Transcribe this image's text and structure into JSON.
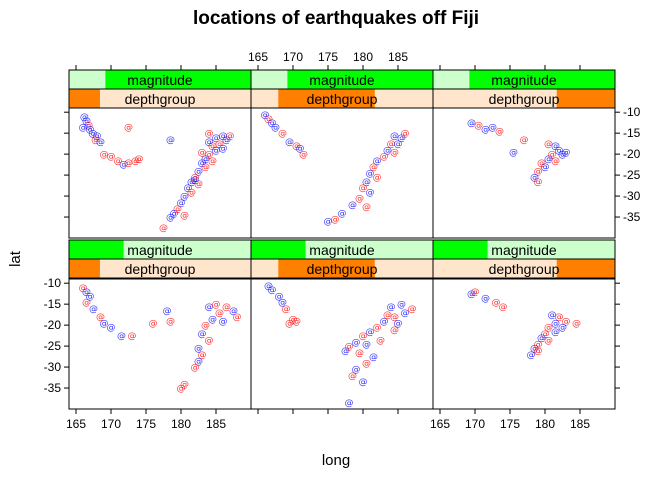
{
  "chart_data": {
    "type": "scatter",
    "title": "locations of earthquakes off Fiji",
    "xlabel": "long",
    "ylabel": "lat",
    "xlim": [
      164,
      190
    ],
    "ylim": [
      -40,
      -9
    ],
    "x_ticks": [
      165,
      170,
      175,
      180,
      185
    ],
    "y_ticks": [
      -10,
      -15,
      -20,
      -25,
      -30,
      -35
    ],
    "x_tick_labels": [
      "165",
      "170",
      "175",
      "180",
      "185"
    ],
    "y_tick_labels": [
      "-10",
      "-15",
      "-20",
      "-25",
      "-30",
      "-35"
    ],
    "marker": "@",
    "colors": {
      "red_points": "#ff0000",
      "blue_points": "#0000ff",
      "strip_mag_bg": "#ccffcc",
      "strip_mag_fill": "#00ff00",
      "strip_depth_bg": "#ffe5cc",
      "strip_depth_fill": "#ff7f00"
    },
    "strips": {
      "magnitude_label": "magnitude",
      "depthgroup_label": "depthgroup"
    },
    "panels": [
      {
        "row": "top",
        "col": 1,
        "magnitude_range": [
          0.2,
          1.0
        ],
        "depth_range": [
          0.0,
          0.17
        ],
        "points": [
          {
            "x": 166.2,
            "y": -11.0,
            "c": "blue"
          },
          {
            "x": 166.5,
            "y": -12.0,
            "c": "blue"
          },
          {
            "x": 166.8,
            "y": -13.0,
            "c": "red"
          },
          {
            "x": 166.0,
            "y": -13.5,
            "c": "blue"
          },
          {
            "x": 167.0,
            "y": -14.0,
            "c": "blue"
          },
          {
            "x": 167.4,
            "y": -15.0,
            "c": "blue"
          },
          {
            "x": 168.0,
            "y": -15.5,
            "c": "blue"
          },
          {
            "x": 167.8,
            "y": -16.5,
            "c": "red"
          },
          {
            "x": 168.5,
            "y": -17.0,
            "c": "blue"
          },
          {
            "x": 169.0,
            "y": -20.0,
            "c": "red"
          },
          {
            "x": 170.0,
            "y": -20.5,
            "c": "red"
          },
          {
            "x": 171.0,
            "y": -21.5,
            "c": "red"
          },
          {
            "x": 171.8,
            "y": -22.3,
            "c": "blue"
          },
          {
            "x": 172.5,
            "y": -22.0,
            "c": "red"
          },
          {
            "x": 173.5,
            "y": -21.5,
            "c": "red"
          },
          {
            "x": 174.0,
            "y": -21.0,
            "c": "red"
          },
          {
            "x": 172.5,
            "y": -13.5,
            "c": "red"
          },
          {
            "x": 178.5,
            "y": -16.5,
            "c": "blue"
          },
          {
            "x": 184.0,
            "y": -15.0,
            "c": "red"
          },
          {
            "x": 185.0,
            "y": -16.0,
            "c": "blue"
          },
          {
            "x": 186.0,
            "y": -15.5,
            "c": "blue"
          },
          {
            "x": 187.0,
            "y": -15.5,
            "c": "red"
          },
          {
            "x": 186.5,
            "y": -16.5,
            "c": "blue"
          },
          {
            "x": 185.5,
            "y": -17.5,
            "c": "red"
          },
          {
            "x": 184.5,
            "y": -18.0,
            "c": "red"
          },
          {
            "x": 185.0,
            "y": -19.0,
            "c": "blue"
          },
          {
            "x": 184.0,
            "y": -20.0,
            "c": "red"
          },
          {
            "x": 183.5,
            "y": -21.0,
            "c": "blue"
          },
          {
            "x": 184.5,
            "y": -21.5,
            "c": "red"
          },
          {
            "x": 183.0,
            "y": -22.0,
            "c": "blue"
          },
          {
            "x": 183.5,
            "y": -23.0,
            "c": "red"
          },
          {
            "x": 182.5,
            "y": -24.0,
            "c": "blue"
          },
          {
            "x": 182.0,
            "y": -25.5,
            "c": "red"
          },
          {
            "x": 181.5,
            "y": -26.5,
            "c": "blue"
          },
          {
            "x": 182.5,
            "y": -27.0,
            "c": "red"
          },
          {
            "x": 181.0,
            "y": -28.0,
            "c": "blue"
          },
          {
            "x": 181.5,
            "y": -29.0,
            "c": "red"
          },
          {
            "x": 180.5,
            "y": -30.0,
            "c": "blue"
          },
          {
            "x": 180.0,
            "y": -31.5,
            "c": "blue"
          },
          {
            "x": 179.5,
            "y": -33.0,
            "c": "red"
          },
          {
            "x": 179.0,
            "y": -34.0,
            "c": "blue"
          },
          {
            "x": 180.5,
            "y": -34.5,
            "c": "red"
          },
          {
            "x": 178.5,
            "y": -35.0,
            "c": "blue"
          },
          {
            "x": 177.5,
            "y": -37.5,
            "c": "red"
          },
          {
            "x": 186.0,
            "y": -18.5,
            "c": "blue"
          },
          {
            "x": 184.0,
            "y": -17.0,
            "c": "blue"
          },
          {
            "x": 183.0,
            "y": -19.5,
            "c": "red"
          },
          {
            "x": 182.0,
            "y": -26.0,
            "c": "blue"
          }
        ]
      },
      {
        "row": "top",
        "col": 2,
        "magnitude_range": [
          0.2,
          1.0
        ],
        "depth_range": [
          0.15,
          0.68
        ],
        "points": [
          {
            "x": 166.0,
            "y": -10.5,
            "c": "blue"
          },
          {
            "x": 166.5,
            "y": -11.5,
            "c": "red"
          },
          {
            "x": 167.0,
            "y": -12.5,
            "c": "blue"
          },
          {
            "x": 167.5,
            "y": -13.5,
            "c": "blue"
          },
          {
            "x": 168.5,
            "y": -15.0,
            "c": "red"
          },
          {
            "x": 169.5,
            "y": -17.0,
            "c": "blue"
          },
          {
            "x": 170.5,
            "y": -18.0,
            "c": "red"
          },
          {
            "x": 171.0,
            "y": -18.5,
            "c": "blue"
          },
          {
            "x": 171.5,
            "y": -20.0,
            "c": "red"
          },
          {
            "x": 184.5,
            "y": -15.5,
            "c": "blue"
          },
          {
            "x": 185.5,
            "y": -16.0,
            "c": "blue"
          },
          {
            "x": 186.0,
            "y": -15.0,
            "c": "red"
          },
          {
            "x": 184.0,
            "y": -17.5,
            "c": "red"
          },
          {
            "x": 183.5,
            "y": -19.0,
            "c": "blue"
          },
          {
            "x": 183.0,
            "y": -20.5,
            "c": "red"
          },
          {
            "x": 182.0,
            "y": -21.5,
            "c": "blue"
          },
          {
            "x": 181.5,
            "y": -23.0,
            "c": "red"
          },
          {
            "x": 181.0,
            "y": -24.5,
            "c": "blue"
          },
          {
            "x": 182.0,
            "y": -25.5,
            "c": "red"
          },
          {
            "x": 180.5,
            "y": -26.5,
            "c": "blue"
          },
          {
            "x": 180.0,
            "y": -28.0,
            "c": "red"
          },
          {
            "x": 181.0,
            "y": -29.0,
            "c": "blue"
          },
          {
            "x": 179.5,
            "y": -30.5,
            "c": "red"
          },
          {
            "x": 178.5,
            "y": -32.0,
            "c": "blue"
          },
          {
            "x": 180.5,
            "y": -32.5,
            "c": "red"
          },
          {
            "x": 177.0,
            "y": -34.0,
            "c": "blue"
          },
          {
            "x": 176.0,
            "y": -35.5,
            "c": "red"
          },
          {
            "x": 175.0,
            "y": -36.0,
            "c": "blue"
          },
          {
            "x": 184.5,
            "y": -19.5,
            "c": "red"
          },
          {
            "x": 185.0,
            "y": -17.5,
            "c": "blue"
          }
        ]
      },
      {
        "row": "top",
        "col": 3,
        "magnitude_range": [
          0.2,
          1.0
        ],
        "depth_range": [
          0.68,
          1.0
        ],
        "points": [
          {
            "x": 169.5,
            "y": -12.5,
            "c": "blue"
          },
          {
            "x": 170.5,
            "y": -13.0,
            "c": "red"
          },
          {
            "x": 171.5,
            "y": -14.0,
            "c": "blue"
          },
          {
            "x": 172.5,
            "y": -13.5,
            "c": "blue"
          },
          {
            "x": 173.5,
            "y": -14.5,
            "c": "red"
          },
          {
            "x": 175.5,
            "y": -19.5,
            "c": "blue"
          },
          {
            "x": 177.0,
            "y": -16.5,
            "c": "red"
          },
          {
            "x": 180.5,
            "y": -17.5,
            "c": "red"
          },
          {
            "x": 181.5,
            "y": -18.0,
            "c": "blue"
          },
          {
            "x": 182.0,
            "y": -19.0,
            "c": "blue"
          },
          {
            "x": 181.0,
            "y": -20.0,
            "c": "red"
          },
          {
            "x": 180.5,
            "y": -21.0,
            "c": "blue"
          },
          {
            "x": 179.5,
            "y": -22.0,
            "c": "red"
          },
          {
            "x": 180.0,
            "y": -23.0,
            "c": "blue"
          },
          {
            "x": 179.0,
            "y": -24.0,
            "c": "red"
          },
          {
            "x": 178.5,
            "y": -25.5,
            "c": "blue"
          },
          {
            "x": 179.0,
            "y": -26.5,
            "c": "red"
          },
          {
            "x": 182.5,
            "y": -20.0,
            "c": "blue"
          },
          {
            "x": 181.5,
            "y": -21.5,
            "c": "red"
          },
          {
            "x": 183.0,
            "y": -19.5,
            "c": "blue"
          }
        ]
      },
      {
        "row": "bottom",
        "col": 1,
        "magnitude_range": [
          0.0,
          0.3
        ],
        "depth_range": [
          0.0,
          0.17
        ],
        "points": [
          {
            "x": 166.0,
            "y": -11.0,
            "c": "red"
          },
          {
            "x": 166.5,
            "y": -12.0,
            "c": "blue"
          },
          {
            "x": 167.0,
            "y": -13.0,
            "c": "blue"
          },
          {
            "x": 166.5,
            "y": -14.5,
            "c": "red"
          },
          {
            "x": 167.5,
            "y": -16.0,
            "c": "blue"
          },
          {
            "x": 168.5,
            "y": -18.0,
            "c": "red"
          },
          {
            "x": 169.0,
            "y": -19.5,
            "c": "blue"
          },
          {
            "x": 170.0,
            "y": -20.5,
            "c": "blue"
          },
          {
            "x": 171.5,
            "y": -22.5,
            "c": "blue"
          },
          {
            "x": 173.0,
            "y": -22.5,
            "c": "red"
          },
          {
            "x": 178.0,
            "y": -16.5,
            "c": "blue"
          },
          {
            "x": 176.0,
            "y": -19.5,
            "c": "red"
          },
          {
            "x": 178.5,
            "y": -19.0,
            "c": "red"
          },
          {
            "x": 184.0,
            "y": -15.5,
            "c": "blue"
          },
          {
            "x": 185.0,
            "y": -15.0,
            "c": "red"
          },
          {
            "x": 186.5,
            "y": -15.5,
            "c": "red"
          },
          {
            "x": 187.5,
            "y": -16.5,
            "c": "blue"
          },
          {
            "x": 185.5,
            "y": -17.0,
            "c": "red"
          },
          {
            "x": 184.5,
            "y": -18.5,
            "c": "blue"
          },
          {
            "x": 183.5,
            "y": -20.0,
            "c": "red"
          },
          {
            "x": 183.0,
            "y": -22.0,
            "c": "blue"
          },
          {
            "x": 184.0,
            "y": -23.5,
            "c": "red"
          },
          {
            "x": 182.5,
            "y": -25.5,
            "c": "blue"
          },
          {
            "x": 183.0,
            "y": -27.0,
            "c": "red"
          },
          {
            "x": 182.5,
            "y": -28.5,
            "c": "blue"
          },
          {
            "x": 182.0,
            "y": -30.0,
            "c": "red"
          },
          {
            "x": 180.5,
            "y": -34.0,
            "c": "red"
          },
          {
            "x": 180.0,
            "y": -35.0,
            "c": "red"
          },
          {
            "x": 188.0,
            "y": -18.0,
            "c": "red"
          },
          {
            "x": 186.0,
            "y": -19.0,
            "c": "blue"
          }
        ]
      },
      {
        "row": "bottom",
        "col": 2,
        "magnitude_range": [
          0.0,
          0.3
        ],
        "depth_range": [
          0.15,
          0.68
        ],
        "points": [
          {
            "x": 166.5,
            "y": -10.5,
            "c": "blue"
          },
          {
            "x": 167.0,
            "y": -11.5,
            "c": "blue"
          },
          {
            "x": 168.0,
            "y": -13.0,
            "c": "blue"
          },
          {
            "x": 168.5,
            "y": -14.5,
            "c": "blue"
          },
          {
            "x": 169.0,
            "y": -16.0,
            "c": "red"
          },
          {
            "x": 170.0,
            "y": -18.5,
            "c": "red"
          },
          {
            "x": 170.5,
            "y": -19.0,
            "c": "red"
          },
          {
            "x": 169.5,
            "y": -19.5,
            "c": "red"
          },
          {
            "x": 184.0,
            "y": -15.5,
            "c": "blue"
          },
          {
            "x": 185.5,
            "y": -15.0,
            "c": "blue"
          },
          {
            "x": 187.0,
            "y": -16.0,
            "c": "red"
          },
          {
            "x": 186.0,
            "y": -17.0,
            "c": "blue"
          },
          {
            "x": 184.5,
            "y": -18.0,
            "c": "red"
          },
          {
            "x": 183.0,
            "y": -19.0,
            "c": "blue"
          },
          {
            "x": 182.0,
            "y": -20.5,
            "c": "red"
          },
          {
            "x": 181.0,
            "y": -21.5,
            "c": "blue"
          },
          {
            "x": 180.0,
            "y": -22.5,
            "c": "red"
          },
          {
            "x": 179.0,
            "y": -24.0,
            "c": "blue"
          },
          {
            "x": 178.0,
            "y": -25.0,
            "c": "red"
          },
          {
            "x": 177.5,
            "y": -26.0,
            "c": "blue"
          },
          {
            "x": 179.5,
            "y": -26.5,
            "c": "red"
          },
          {
            "x": 181.5,
            "y": -27.5,
            "c": "blue"
          },
          {
            "x": 180.5,
            "y": -29.0,
            "c": "red"
          },
          {
            "x": 179.0,
            "y": -30.5,
            "c": "blue"
          },
          {
            "x": 178.5,
            "y": -32.0,
            "c": "red"
          },
          {
            "x": 180.0,
            "y": -33.5,
            "c": "blue"
          },
          {
            "x": 178.0,
            "y": -38.5,
            "c": "blue"
          },
          {
            "x": 183.5,
            "y": -17.5,
            "c": "red"
          },
          {
            "x": 185.0,
            "y": -19.5,
            "c": "blue"
          },
          {
            "x": 182.5,
            "y": -23.5,
            "c": "red"
          },
          {
            "x": 180.5,
            "y": -24.5,
            "c": "blue"
          },
          {
            "x": 184.5,
            "y": -21.0,
            "c": "red"
          }
        ]
      },
      {
        "row": "bottom",
        "col": 3,
        "magnitude_range": [
          0.0,
          0.3
        ],
        "depth_range": [
          0.68,
          1.0
        ],
        "points": [
          {
            "x": 169.5,
            "y": -12.5,
            "c": "blue"
          },
          {
            "x": 170.0,
            "y": -12.0,
            "c": "red"
          },
          {
            "x": 171.5,
            "y": -13.5,
            "c": "blue"
          },
          {
            "x": 173.0,
            "y": -14.5,
            "c": "red"
          },
          {
            "x": 174.0,
            "y": -15.5,
            "c": "red"
          },
          {
            "x": 181.0,
            "y": -17.5,
            "c": "blue"
          },
          {
            "x": 182.0,
            "y": -18.0,
            "c": "red"
          },
          {
            "x": 183.0,
            "y": -19.0,
            "c": "red"
          },
          {
            "x": 181.5,
            "y": -19.5,
            "c": "blue"
          },
          {
            "x": 180.5,
            "y": -20.5,
            "c": "red"
          },
          {
            "x": 182.5,
            "y": -20.5,
            "c": "blue"
          },
          {
            "x": 184.5,
            "y": -19.5,
            "c": "red"
          },
          {
            "x": 180.0,
            "y": -22.0,
            "c": "red"
          },
          {
            "x": 179.5,
            "y": -23.0,
            "c": "blue"
          },
          {
            "x": 180.5,
            "y": -23.5,
            "c": "red"
          },
          {
            "x": 179.0,
            "y": -24.5,
            "c": "red"
          },
          {
            "x": 178.5,
            "y": -25.5,
            "c": "blue"
          },
          {
            "x": 179.0,
            "y": -26.0,
            "c": "red"
          },
          {
            "x": 178.0,
            "y": -27.0,
            "c": "blue"
          },
          {
            "x": 181.5,
            "y": -21.5,
            "c": "blue"
          }
        ]
      }
    ]
  }
}
